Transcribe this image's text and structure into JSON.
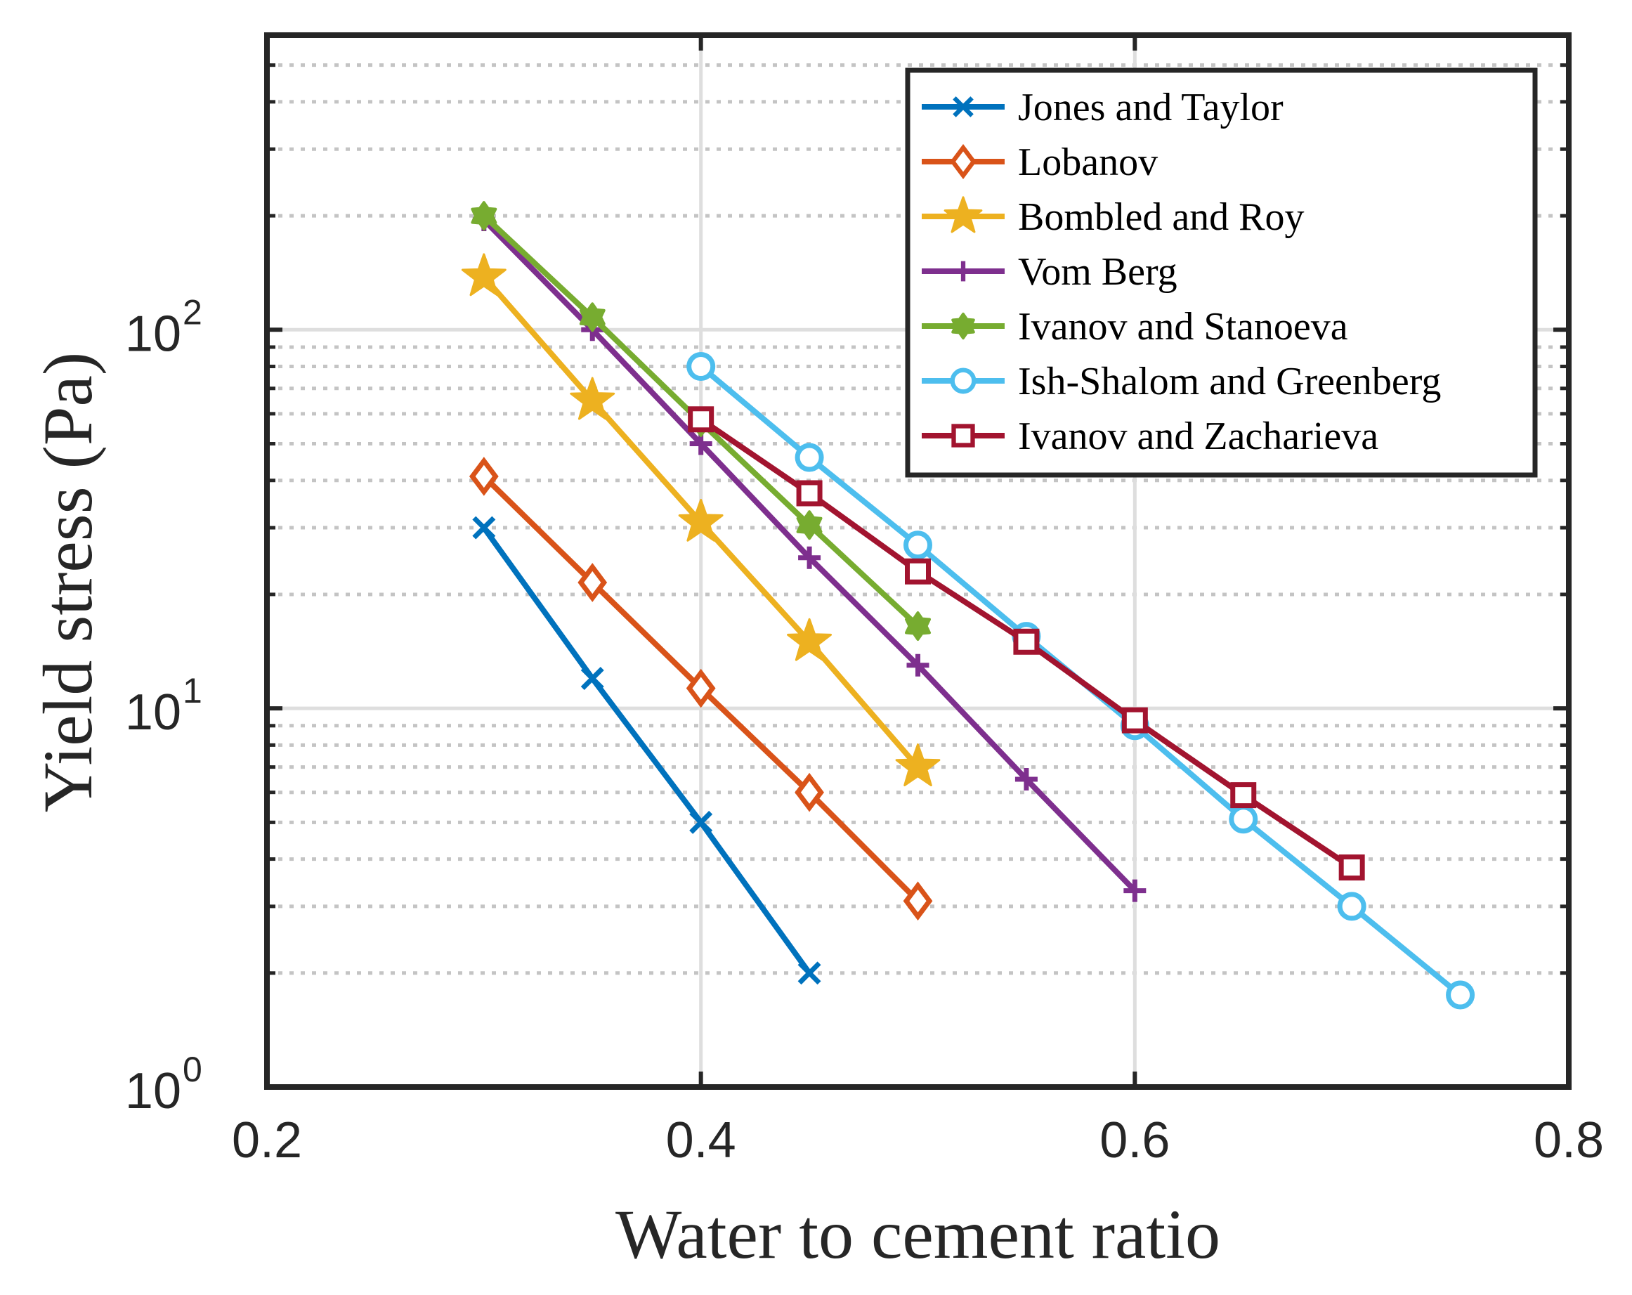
{
  "chart_data": {
    "type": "line",
    "xlabel": "Water to cement ratio",
    "ylabel": "Yield stress (Pa)",
    "xlim": [
      0.2,
      0.8
    ],
    "ylim": [
      1,
      600
    ],
    "yscale": "log",
    "grid": true,
    "legend_position": "top-right",
    "x_ticks": [
      {
        "value": 0.2,
        "label": "0.2"
      },
      {
        "value": 0.4,
        "label": "0.4"
      },
      {
        "value": 0.6,
        "label": "0.6"
      },
      {
        "value": 0.8,
        "label": "0.8"
      }
    ],
    "y_ticks": [
      {
        "value": 1,
        "base": "10",
        "exp": "0"
      },
      {
        "value": 10,
        "base": "10",
        "exp": "1"
      },
      {
        "value": 100,
        "base": "10",
        "exp": "2"
      }
    ],
    "series": [
      {
        "name": "Jones and Taylor",
        "color": "#0072BD",
        "marker": "x",
        "x": [
          0.3,
          0.35,
          0.4,
          0.45
        ],
        "y": [
          30,
          12,
          5,
          2
        ]
      },
      {
        "name": "Lobanov",
        "color": "#D95319",
        "marker": "diamond",
        "x": [
          0.3,
          0.35,
          0.4,
          0.45,
          0.5
        ],
        "y": [
          41,
          21.5,
          11.3,
          6,
          3.1
        ]
      },
      {
        "name": "Bombled and Roy",
        "color": "#EDB120",
        "marker": "star",
        "x": [
          0.3,
          0.35,
          0.4,
          0.45,
          0.5
        ],
        "y": [
          138,
          65,
          31,
          15,
          7
        ]
      },
      {
        "name": "Vom Berg",
        "color": "#7E2F8E",
        "marker": "plus",
        "x": [
          0.3,
          0.35,
          0.4,
          0.45,
          0.5,
          0.55,
          0.6
        ],
        "y": [
          195,
          100,
          50,
          25,
          13,
          6.5,
          3.3
        ]
      },
      {
        "name": "Ivanov and Stanoeva",
        "color": "#77AC30",
        "marker": "hexagram",
        "x": [
          0.3,
          0.35,
          0.4,
          0.45,
          0.5
        ],
        "y": [
          200,
          108,
          57,
          30.5,
          16.5
        ]
      },
      {
        "name": "Ish-Shalom and Greenberg",
        "color": "#4DBEEE",
        "marker": "circle",
        "x": [
          0.4,
          0.45,
          0.5,
          0.55,
          0.6,
          0.65,
          0.7,
          0.75
        ],
        "y": [
          80,
          46,
          27,
          15.5,
          9,
          5.1,
          3,
          1.75
        ]
      },
      {
        "name": "Ivanov and Zacharieva",
        "color": "#A2142F",
        "marker": "square",
        "x": [
          0.4,
          0.45,
          0.5,
          0.55,
          0.6,
          0.65,
          0.7
        ],
        "y": [
          58,
          37,
          23,
          15,
          9.3,
          5.9,
          3.8
        ]
      }
    ]
  }
}
